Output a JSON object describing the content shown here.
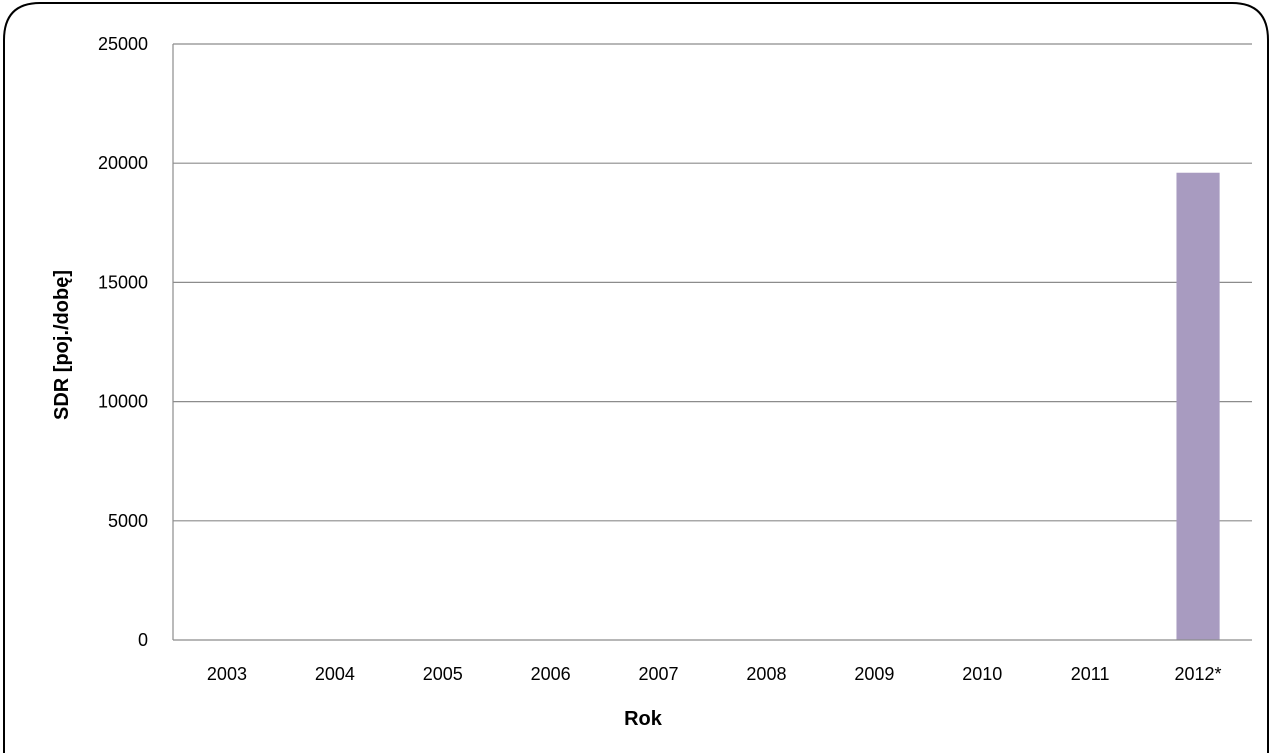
{
  "chart_data": {
    "type": "bar",
    "title": "",
    "xlabel": "Rok",
    "ylabel": "SDR [poj./dobę]",
    "categories": [
      "2003",
      "2004",
      "2005",
      "2006",
      "2007",
      "2008",
      "2009",
      "2010",
      "2011",
      "2012*"
    ],
    "series": [
      {
        "values": [
          0,
          0,
          0,
          0,
          0,
          0,
          0,
          0,
          0,
          19600
        ]
      }
    ],
    "ylim": [
      0,
      25000
    ],
    "yticks": [
      0,
      5000,
      10000,
      15000,
      20000,
      25000
    ],
    "grid": "horizontal",
    "legend": "none",
    "colors": {
      "bar": "#a89bc0",
      "grid": "#8c8c8c",
      "axis": "#8c8c8c",
      "frame": "#000000"
    }
  }
}
